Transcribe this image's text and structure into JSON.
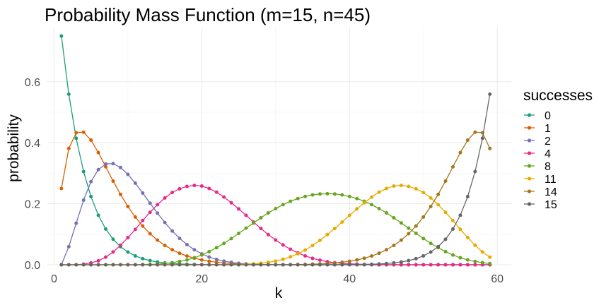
{
  "chart_data": {
    "type": "line",
    "title": "Probability Mass Function (m=15, n=45)",
    "xlabel": "k",
    "ylabel": "probability",
    "xlim": [
      -0.9,
      61.9
    ],
    "ylim": [
      0,
      0.78
    ],
    "x_ticks": [
      0,
      20,
      40,
      60
    ],
    "y_ticks": [
      0.0,
      0.2,
      0.4,
      0.6
    ],
    "y_tick_labels": [
      "0.0",
      "0.2",
      "0.4",
      "0.6"
    ],
    "x_tick_labels": [
      "0",
      "20",
      "40",
      "60"
    ],
    "grid": true,
    "legend": {
      "title": "successes",
      "position": "right"
    },
    "markers": "points",
    "series": [
      {
        "name": "0",
        "color": "#1b9e77",
        "x": [
          1,
          2,
          3,
          4,
          5,
          6,
          7,
          8,
          9,
          10,
          11,
          12,
          13,
          14,
          15,
          16,
          17,
          18,
          19,
          20,
          21,
          22,
          23,
          24,
          25,
          26,
          27,
          28,
          29,
          30,
          31,
          32,
          33,
          34,
          35,
          36,
          37,
          38,
          39,
          40,
          41,
          42,
          43,
          44,
          45,
          46,
          47,
          48,
          49,
          50,
          51,
          52,
          53,
          54,
          55,
          56,
          57,
          58,
          59
        ],
        "y": [
          0.75,
          0.5593,
          0.4147,
          0.3055,
          0.2235,
          0.1624,
          0.1171,
          0.0837,
          0.0593,
          0.0417,
          0.029,
          0.02,
          0.0136,
          0.0091,
          0.0061,
          0.004,
          0.0026,
          0.0016,
          0.001,
          0.0006,
          0.0004,
          0.0002,
          0.0001,
          0.0001,
          0,
          0,
          0,
          0,
          0,
          0,
          0,
          0,
          0,
          0,
          0,
          0,
          0,
          0,
          0,
          0,
          0,
          0,
          0,
          0,
          0,
          0,
          0,
          0,
          0,
          0,
          0,
          0,
          0,
          0,
          0,
          0,
          0,
          0,
          0
        ]
      },
      {
        "name": "1",
        "color": "#d95f02",
        "x": [
          1,
          2,
          3,
          4,
          5,
          6,
          7,
          8,
          9,
          10,
          11,
          12,
          13,
          14,
          15,
          16,
          17,
          18,
          19,
          20,
          21,
          22,
          23,
          24,
          25,
          26,
          27,
          28,
          29,
          30,
          31,
          32,
          33,
          34,
          35,
          36,
          37,
          38,
          39,
          40,
          41,
          42,
          43,
          44,
          45,
          46,
          47,
          48,
          49,
          50,
          51,
          52,
          53,
          54,
          55,
          56,
          57,
          58,
          59
        ],
        "y": [
          0.25,
          0.3814,
          0.4329,
          0.4346,
          0.4086,
          0.3677,
          0.3211,
          0.2744,
          0.2306,
          0.1911,
          0.1566,
          0.1269,
          0.1018,
          0.0808,
          0.0634,
          0.0492,
          0.0378,
          0.0286,
          0.0214,
          0.0158,
          0.0115,
          0.0083,
          0.0058,
          0.0041,
          0.0028,
          0.0019,
          0.0012,
          0.0008,
          0.0005,
          0.0003,
          0.0002,
          0.0001,
          0.0001,
          0,
          0,
          0,
          0,
          0,
          0,
          0,
          0,
          0,
          0,
          0,
          0,
          0,
          0,
          0,
          0,
          0,
          0,
          0,
          0,
          0,
          0,
          0,
          0,
          0,
          0
        ]
      },
      {
        "name": "2",
        "color": "#7570b3",
        "x": [
          1,
          2,
          3,
          4,
          5,
          6,
          7,
          8,
          9,
          10,
          11,
          12,
          13,
          14,
          15,
          16,
          17,
          18,
          19,
          20,
          21,
          22,
          23,
          24,
          25,
          26,
          27,
          28,
          29,
          30,
          31,
          32,
          33,
          34,
          35,
          36,
          37,
          38,
          39,
          40,
          41,
          42,
          43,
          44,
          45,
          46,
          47,
          48,
          49,
          50,
          51,
          52,
          53,
          54,
          55,
          56,
          57,
          58,
          59
        ],
        "y": [
          0,
          0.0593,
          0.1361,
          0.2117,
          0.2725,
          0.3119,
          0.3305,
          0.3315,
          0.3189,
          0.2964,
          0.2675,
          0.2352,
          0.2018,
          0.1692,
          0.1385,
          0.1107,
          0.0865,
          0.066,
          0.0491,
          0.0357,
          0.0253,
          0.0175,
          0.0118,
          0.0077,
          0.0049,
          0.0031,
          0.0019,
          0.0011,
          0.0006,
          0.0004,
          0.0002,
          0.0001,
          0.0001,
          0,
          0,
          0,
          0,
          0,
          0,
          0,
          0,
          0,
          0,
          0,
          0,
          0,
          0,
          0,
          0,
          0,
          0,
          0,
          0,
          0,
          0,
          0,
          0,
          0,
          0
        ]
      },
      {
        "name": "4",
        "color": "#e7298a",
        "x": [
          1,
          2,
          3,
          4,
          5,
          6,
          7,
          8,
          9,
          10,
          11,
          12,
          13,
          14,
          15,
          16,
          17,
          18,
          19,
          20,
          21,
          22,
          23,
          24,
          25,
          26,
          27,
          28,
          29,
          30,
          31,
          32,
          33,
          34,
          35,
          36,
          37,
          38,
          39,
          40,
          41,
          42,
          43,
          44,
          45,
          46,
          47,
          48,
          49,
          50,
          51,
          52,
          53,
          54,
          55,
          56,
          57,
          58,
          59
        ],
        "y": [
          0,
          0,
          0,
          0.002,
          0.006,
          0.013,
          0.025,
          0.042,
          0.064,
          0.089,
          0.116,
          0.145,
          0.172,
          0.197,
          0.219,
          0.237,
          0.249,
          0.257,
          0.26,
          0.258,
          0.25,
          0.238,
          0.222,
          0.203,
          0.183,
          0.162,
          0.14,
          0.119,
          0.099,
          0.081,
          0.065,
          0.051,
          0.039,
          0.029,
          0.021,
          0.015,
          0.01,
          0.007,
          0.004,
          0.003,
          0.002,
          0.001,
          0.001,
          0,
          0,
          0,
          0,
          0,
          0,
          0,
          0,
          0,
          0,
          0,
          0,
          0,
          0,
          0,
          0
        ]
      },
      {
        "name": "8",
        "color": "#66a61e",
        "x": [
          1,
          2,
          3,
          4,
          5,
          6,
          7,
          8,
          9,
          10,
          11,
          12,
          13,
          14,
          15,
          16,
          17,
          18,
          19,
          20,
          21,
          22,
          23,
          24,
          25,
          26,
          27,
          28,
          29,
          30,
          31,
          32,
          33,
          34,
          35,
          36,
          37,
          38,
          39,
          40,
          41,
          42,
          43,
          44,
          45,
          46,
          47,
          48,
          49,
          50,
          51,
          52,
          53,
          54,
          55,
          56,
          57,
          58,
          59
        ],
        "y": [
          0,
          0,
          0,
          0,
          0,
          0,
          0,
          0,
          0,
          0,
          0,
          0.001,
          0.001,
          0.002,
          0.004,
          0.007,
          0.011,
          0.016,
          0.023,
          0.032,
          0.043,
          0.056,
          0.07,
          0.086,
          0.103,
          0.12,
          0.137,
          0.154,
          0.17,
          0.184,
          0.197,
          0.208,
          0.217,
          0.224,
          0.229,
          0.232,
          0.233,
          0.232,
          0.229,
          0.224,
          0.217,
          0.208,
          0.197,
          0.184,
          0.17,
          0.154,
          0.137,
          0.12,
          0.103,
          0.086,
          0.07,
          0.056,
          0.043,
          0.032,
          0.023,
          0.016,
          0.011,
          0.007,
          0.004
        ]
      },
      {
        "name": "11",
        "color": "#e6ab02",
        "x": [
          1,
          2,
          3,
          4,
          5,
          6,
          7,
          8,
          9,
          10,
          11,
          12,
          13,
          14,
          15,
          16,
          17,
          18,
          19,
          20,
          21,
          22,
          23,
          24,
          25,
          26,
          27,
          28,
          29,
          30,
          31,
          32,
          33,
          34,
          35,
          36,
          37,
          38,
          39,
          40,
          41,
          42,
          43,
          44,
          45,
          46,
          47,
          48,
          49,
          50,
          51,
          52,
          53,
          54,
          55,
          56,
          57,
          58,
          59
        ],
        "y": [
          0,
          0,
          0,
          0,
          0,
          0,
          0,
          0,
          0,
          0,
          0,
          0,
          0,
          0,
          0,
          0,
          0,
          0,
          0,
          0,
          0,
          0,
          0,
          0.001,
          0.001,
          0.002,
          0.003,
          0.005,
          0.008,
          0.012,
          0.018,
          0.026,
          0.036,
          0.048,
          0.063,
          0.08,
          0.099,
          0.119,
          0.14,
          0.162,
          0.183,
          0.203,
          0.222,
          0.238,
          0.25,
          0.258,
          0.26,
          0.257,
          0.249,
          0.237,
          0.219,
          0.197,
          0.172,
          0.145,
          0.116,
          0.089,
          0.064,
          0.042,
          0.025
        ]
      },
      {
        "name": "14",
        "color": "#a6761d",
        "x": [
          1,
          2,
          3,
          4,
          5,
          6,
          7,
          8,
          9,
          10,
          11,
          12,
          13,
          14,
          15,
          16,
          17,
          18,
          19,
          20,
          21,
          22,
          23,
          24,
          25,
          26,
          27,
          28,
          29,
          30,
          31,
          32,
          33,
          34,
          35,
          36,
          37,
          38,
          39,
          40,
          41,
          42,
          43,
          44,
          45,
          46,
          47,
          48,
          49,
          50,
          51,
          52,
          53,
          54,
          55,
          56,
          57,
          58,
          59
        ],
        "y": [
          0,
          0,
          0,
          0,
          0,
          0,
          0,
          0,
          0,
          0,
          0,
          0,
          0,
          0,
          0,
          0,
          0,
          0,
          0,
          0,
          0,
          0,
          0,
          0,
          0,
          0,
          0,
          0.0001,
          0.0001,
          0.0002,
          0.0003,
          0.0005,
          0.0008,
          0.0012,
          0.0019,
          0.0028,
          0.0041,
          0.0058,
          0.0083,
          0.0115,
          0.0158,
          0.0214,
          0.0286,
          0.0378,
          0.0492,
          0.0634,
          0.0808,
          0.1018,
          0.1269,
          0.1566,
          0.1911,
          0.2306,
          0.2744,
          0.3211,
          0.3677,
          0.4086,
          0.4346,
          0.4329,
          0.3814
        ]
      },
      {
        "name": "15",
        "color": "#666666",
        "x": [
          1,
          2,
          3,
          4,
          5,
          6,
          7,
          8,
          9,
          10,
          11,
          12,
          13,
          14,
          15,
          16,
          17,
          18,
          19,
          20,
          21,
          22,
          23,
          24,
          25,
          26,
          27,
          28,
          29,
          30,
          31,
          32,
          33,
          34,
          35,
          36,
          37,
          38,
          39,
          40,
          41,
          42,
          43,
          44,
          45,
          46,
          47,
          48,
          49,
          50,
          51,
          52,
          53,
          54,
          55,
          56,
          57,
          58,
          59
        ],
        "y": [
          0,
          0,
          0,
          0,
          0,
          0,
          0,
          0,
          0,
          0,
          0,
          0,
          0,
          0,
          0,
          0,
          0,
          0,
          0,
          0,
          0,
          0,
          0,
          0,
          0,
          0,
          0,
          0,
          0,
          0,
          0,
          0,
          0,
          0,
          0,
          0,
          0.0001,
          0.0001,
          0.0002,
          0.0004,
          0.0006,
          0.001,
          0.0016,
          0.0026,
          0.004,
          0.0061,
          0.0091,
          0.0136,
          0.02,
          0.029,
          0.0417,
          0.0593,
          0.0837,
          0.1171,
          0.1624,
          0.2235,
          0.3055,
          0.4147,
          0.5593
        ]
      }
    ]
  }
}
